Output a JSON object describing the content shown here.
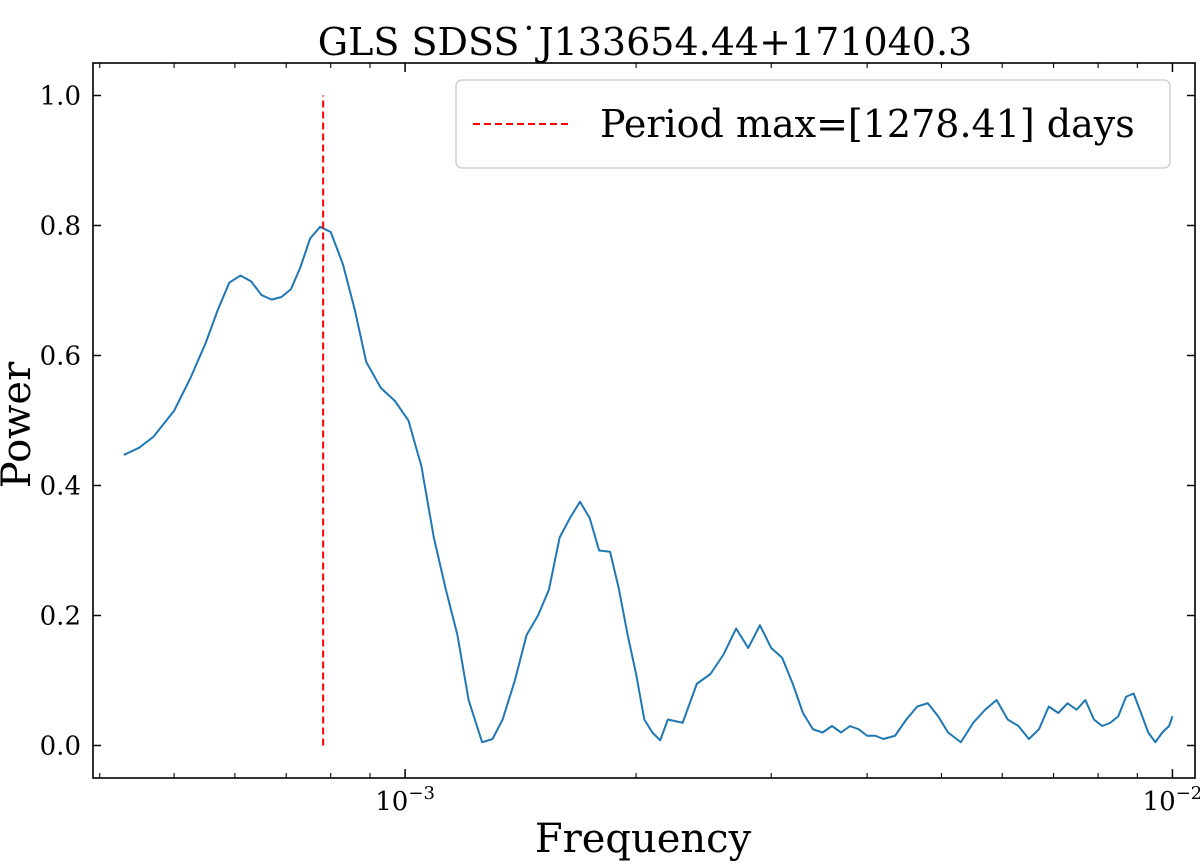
{
  "chart_data": {
    "type": "line",
    "title": "GLS SDSS˙J133654.44+171040.3",
    "xlabel": "Frequency",
    "ylabel": "Power",
    "xscale": "log",
    "xlim": [
      0.000392,
      0.0107
    ],
    "ylim": [
      -0.05,
      1.05
    ],
    "grid": false,
    "legend_placement": "top-right",
    "x_ticks": [
      {
        "value": 0.001,
        "base": "10",
        "exponent": "−3"
      },
      {
        "value": 0.01,
        "base": "10",
        "exponent": "−2"
      }
    ],
    "y_ticks": [
      {
        "value": 0.0,
        "label": "0.0"
      },
      {
        "value": 0.2,
        "label": "0.2"
      },
      {
        "value": 0.4,
        "label": "0.4"
      },
      {
        "value": 0.6,
        "label": "0.6"
      },
      {
        "value": 0.8,
        "label": "0.8"
      },
      {
        "value": 1.0,
        "label": "1.0"
      }
    ],
    "series": [
      {
        "type": "line",
        "color": "#1f77b4",
        "x": [
          0.00043,
          0.00045,
          0.00047,
          0.0005,
          0.000525,
          0.00055,
          0.00057,
          0.00059,
          0.00061,
          0.00063,
          0.00065,
          0.00067,
          0.00069,
          0.00071,
          0.00073,
          0.000752,
          0.000775,
          0.0008,
          0.00083,
          0.00086,
          0.00089,
          0.00093,
          0.00097,
          0.00101,
          0.00105,
          0.00109,
          0.00113,
          0.00117,
          0.00121,
          0.00126,
          0.0013,
          0.00134,
          0.00139,
          0.00144,
          0.00149,
          0.00154,
          0.00159,
          0.00164,
          0.00169,
          0.00174,
          0.00179,
          0.00185,
          0.0019,
          0.00195,
          0.002,
          0.00205,
          0.0021,
          0.00215,
          0.0022,
          0.0023,
          0.0024,
          0.0025,
          0.0026,
          0.0027,
          0.0028,
          0.0029,
          0.003,
          0.0031,
          0.0032,
          0.0033,
          0.0034,
          0.0035,
          0.0036,
          0.0037,
          0.0038,
          0.0039,
          0.004,
          0.0041,
          0.0042,
          0.00435,
          0.0045,
          0.00465,
          0.0048,
          0.00495,
          0.0051,
          0.0053,
          0.0055,
          0.0057,
          0.0059,
          0.0061,
          0.0063,
          0.0065,
          0.0067,
          0.0069,
          0.0071,
          0.0073,
          0.0075,
          0.0077,
          0.0079,
          0.0081,
          0.0083,
          0.0085,
          0.0087,
          0.0089,
          0.0091,
          0.0093,
          0.0095,
          0.0097,
          0.0099,
          0.01
        ],
        "y": [
          0.447,
          0.458,
          0.475,
          0.515,
          0.565,
          0.62,
          0.67,
          0.712,
          0.723,
          0.714,
          0.693,
          0.686,
          0.69,
          0.702,
          0.735,
          0.78,
          0.798,
          0.79,
          0.74,
          0.67,
          0.59,
          0.55,
          0.53,
          0.5,
          0.43,
          0.32,
          0.24,
          0.17,
          0.07,
          0.005,
          0.01,
          0.04,
          0.1,
          0.17,
          0.2,
          0.24,
          0.32,
          0.35,
          0.375,
          0.35,
          0.3,
          0.298,
          0.24,
          0.17,
          0.11,
          0.04,
          0.02,
          0.008,
          0.04,
          0.035,
          0.095,
          0.11,
          0.14,
          0.18,
          0.15,
          0.185,
          0.15,
          0.135,
          0.095,
          0.05,
          0.025,
          0.02,
          0.03,
          0.02,
          0.03,
          0.025,
          0.015,
          0.015,
          0.01,
          0.015,
          0.04,
          0.06,
          0.065,
          0.045,
          0.02,
          0.005,
          0.035,
          0.055,
          0.07,
          0.04,
          0.03,
          0.01,
          0.025,
          0.06,
          0.05,
          0.065,
          0.055,
          0.07,
          0.04,
          0.03,
          0.035,
          0.045,
          0.075,
          0.08,
          0.05,
          0.02,
          0.005,
          0.02,
          0.03,
          0.045
        ]
      },
      {
        "type": "vline",
        "name": "Period max=[1278.41] days",
        "color": "#ff0000",
        "dash": "dashed",
        "x": 0.000782,
        "y_range": [
          0.0,
          1.0
        ]
      }
    ]
  }
}
